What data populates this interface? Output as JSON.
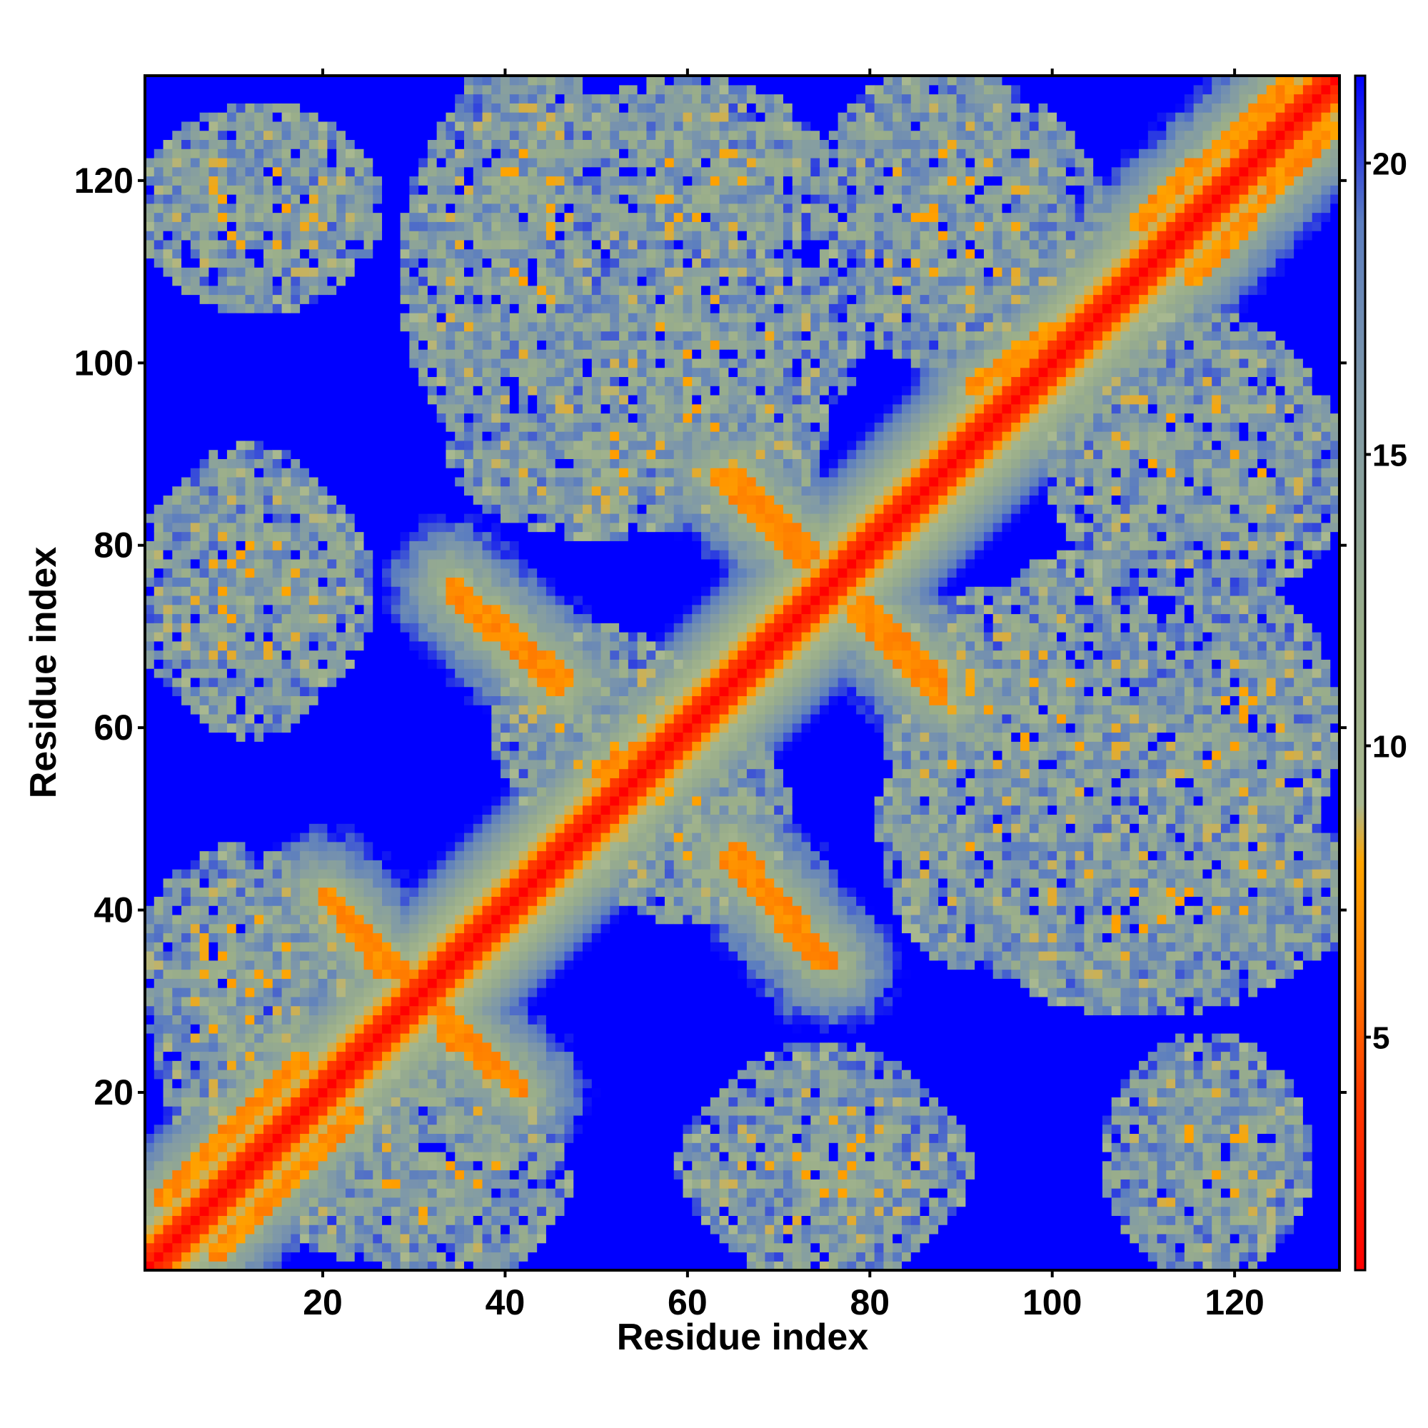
{
  "chart_data": {
    "type": "heatmap",
    "title": "",
    "xlabel": "Residue index",
    "ylabel": "Residue index",
    "x_range": [
      1,
      131
    ],
    "y_range": [
      1,
      131
    ],
    "x_ticks": [
      20,
      40,
      60,
      80,
      100,
      120
    ],
    "y_ticks": [
      20,
      40,
      60,
      80,
      100,
      120
    ],
    "colorbar": {
      "ticks": [
        5,
        10,
        15,
        20
      ],
      "range": [
        1,
        21.5
      ],
      "stops": [
        {
          "value": 1,
          "color": "#ff0000"
        },
        {
          "value": 4,
          "color": "#ff3a00"
        },
        {
          "value": 6,
          "color": "#ff7a00"
        },
        {
          "value": 8,
          "color": "#ffa500"
        },
        {
          "value": 9,
          "color": "#a8b890"
        },
        {
          "value": 12,
          "color": "#9aae8a"
        },
        {
          "value": 16,
          "color": "#7f99a8"
        },
        {
          "value": 19,
          "color": "#5b7dc0"
        },
        {
          "value": 21.5,
          "color": "#0000ff"
        }
      ]
    },
    "cutoff_color": "#0000ff",
    "diagonal": {
      "main": true
    },
    "anti_diagonal_segments": [
      {
        "from": [
          20,
          42
        ],
        "to": [
          30,
          32
        ]
      },
      {
        "from": [
          33,
          27
        ],
        "to": [
          42,
          20
        ]
      },
      {
        "from": [
          34,
          76
        ],
        "to": [
          47,
          65
        ]
      },
      {
        "from": [
          65,
          88
        ],
        "to": [
          74,
          79
        ]
      },
      {
        "from": [
          78,
          73
        ],
        "to": [
          88,
          63
        ]
      },
      {
        "from": [
          64,
          46
        ],
        "to": [
          75,
          34
        ]
      }
    ],
    "diagonal_bands": [
      {
        "from": [
          2,
          8
        ],
        "to": [
          18,
          24
        ]
      },
      {
        "from": [
          8,
          2
        ],
        "to": [
          24,
          18
        ]
      },
      {
        "from": [
          109,
          115
        ],
        "to": [
          126,
          131
        ]
      },
      {
        "from": [
          115,
          109
        ],
        "to": [
          131,
          126
        ]
      },
      {
        "from": [
          91,
          97
        ],
        "to": [
          100,
          104
        ]
      },
      {
        "from": [
          50,
          55
        ],
        "to": [
          55,
          58
        ]
      }
    ],
    "contact_clusters": [
      {
        "x": 13,
        "y": 117,
        "rx": 12,
        "ry": 10
      },
      {
        "x": 117,
        "y": 13,
        "rx": 10,
        "ry": 12
      },
      {
        "x": 42,
        "y": 118,
        "rx": 8,
        "ry": 15
      },
      {
        "x": 88,
        "y": 118,
        "rx": 12,
        "ry": 13
      },
      {
        "x": 62,
        "y": 102,
        "rx": 15,
        "ry": 10
      },
      {
        "x": 12,
        "y": 75,
        "rx": 12,
        "ry": 12
      },
      {
        "x": 115,
        "y": 90,
        "rx": 14,
        "ry": 14
      },
      {
        "x": 120,
        "y": 60,
        "rx": 10,
        "ry": 14
      },
      {
        "x": 110,
        "y": 40,
        "rx": 18,
        "ry": 10
      },
      {
        "x": 12,
        "y": 35,
        "rx": 12,
        "ry": 10
      },
      {
        "x": 30,
        "y": 10,
        "rx": 15,
        "ry": 8
      },
      {
        "x": 75,
        "y": 12,
        "rx": 14,
        "ry": 10
      },
      {
        "x": 95,
        "y": 62,
        "rx": 12,
        "ry": 12
      },
      {
        "x": 50,
        "y": 90,
        "rx": 14,
        "ry": 8
      },
      {
        "x": 60,
        "y": 50,
        "rx": 10,
        "ry": 10
      }
    ]
  }
}
